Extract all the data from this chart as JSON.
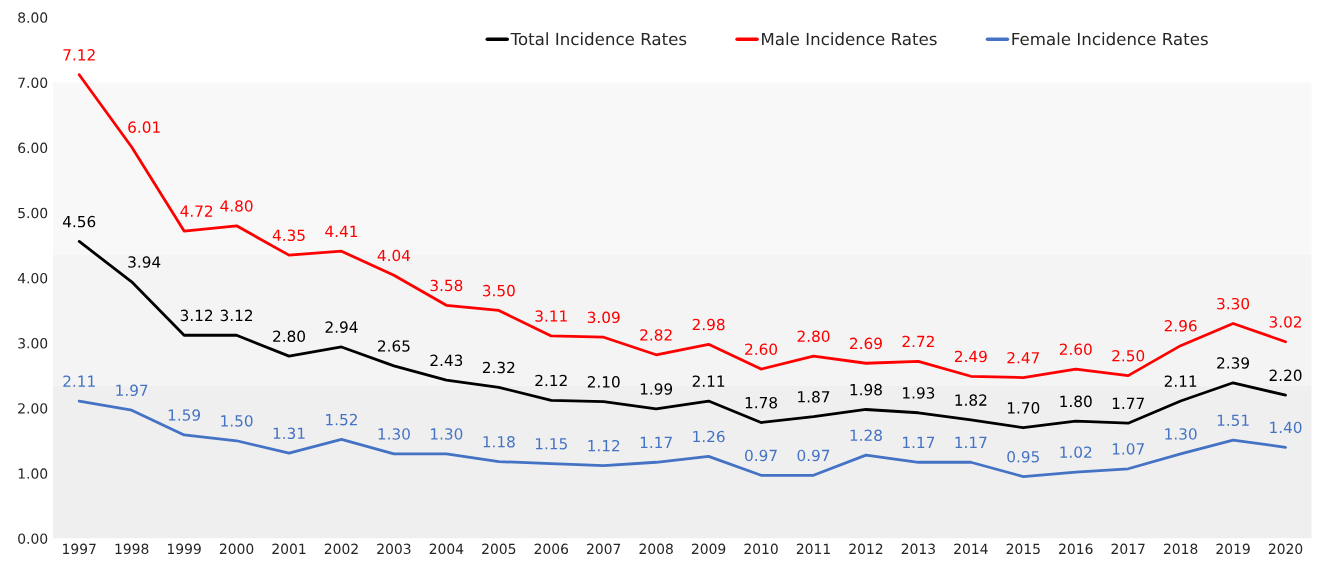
{
  "chart_data": {
    "type": "line",
    "categories": [
      "1997",
      "1998",
      "1999",
      "2000",
      "2001",
      "2002",
      "2003",
      "2004",
      "2005",
      "2006",
      "2007",
      "2008",
      "2009",
      "2010",
      "2011",
      "2012",
      "2013",
      "2014",
      "2015",
      "2016",
      "2017",
      "2018",
      "2019",
      "2020"
    ],
    "series": [
      {
        "name": "Total Incidence Rates",
        "color": "#000000",
        "values": [
          4.56,
          3.94,
          3.12,
          3.12,
          2.8,
          2.94,
          2.65,
          2.43,
          2.32,
          2.12,
          2.1,
          1.99,
          2.11,
          1.78,
          1.87,
          1.98,
          1.93,
          1.82,
          1.7,
          1.8,
          1.77,
          2.11,
          2.39,
          2.2
        ],
        "value_labels": [
          "4.56",
          "3.94",
          "3.12",
          "3.12",
          "2.80",
          "2.94",
          "2.65",
          "2.43",
          "2.32",
          "2.12",
          "2.10",
          "1.99",
          "2.11",
          "1.78",
          "1.87",
          "1.98",
          "1.93",
          "1.82",
          "1.70",
          "1.80",
          "1.77",
          "2.11",
          "2.39",
          "2.20"
        ]
      },
      {
        "name": "Male Incidence Rates",
        "color": "#ff0000",
        "values": [
          7.12,
          6.01,
          4.72,
          4.8,
          4.35,
          4.41,
          4.04,
          3.58,
          3.5,
          3.11,
          3.09,
          2.82,
          2.98,
          2.6,
          2.8,
          2.69,
          2.72,
          2.49,
          2.47,
          2.6,
          2.5,
          2.96,
          3.3,
          3.02
        ],
        "value_labels": [
          "7.12",
          "6.01",
          "4.72",
          "4.80",
          "4.35",
          "4.41",
          "4.04",
          "3.58",
          "3.50",
          "3.11",
          "3.09",
          "2.82",
          "2.98",
          "2.60",
          "2.80",
          "2.69",
          "2.72",
          "2.49",
          "2.47",
          "2.60",
          "2.50",
          "2.96",
          "3.30",
          "3.02"
        ]
      },
      {
        "name": "Female Incidence Rates",
        "color": "#4472c4",
        "values": [
          2.11,
          1.97,
          1.59,
          1.5,
          1.31,
          1.52,
          1.3,
          1.3,
          1.18,
          1.15,
          1.12,
          1.17,
          1.26,
          0.97,
          0.97,
          1.28,
          1.17,
          1.17,
          0.95,
          1.02,
          1.07,
          1.3,
          1.51,
          1.4
        ],
        "value_labels": [
          "2.11",
          "1.97",
          "1.59",
          "1.50",
          "1.31",
          "1.52",
          "1.30",
          "1.30",
          "1.18",
          "1.15",
          "1.12",
          "1.17",
          "1.26",
          "0.97",
          "0.97",
          "1.28",
          "1.17",
          "1.17",
          "0.95",
          "1.02",
          "1.07",
          "1.30",
          "1.51",
          "1.40"
        ]
      }
    ],
    "ylim": [
      0,
      8
    ],
    "yticks": [
      {
        "value": 0,
        "label": "0.00"
      },
      {
        "value": 1,
        "label": "1.00"
      },
      {
        "value": 2,
        "label": "2.00"
      },
      {
        "value": 3,
        "label": "3.00"
      },
      {
        "value": 4,
        "label": "4.00"
      },
      {
        "value": 5,
        "label": "5.00"
      },
      {
        "value": 6,
        "label": "6.00"
      },
      {
        "value": 7,
        "label": "7.00"
      },
      {
        "value": 8,
        "label": "8.00"
      }
    ],
    "bands": [
      {
        "axis": "y",
        "from": 0,
        "to": 2.35,
        "color": "#efefef"
      },
      {
        "axis": "y",
        "from": 2.35,
        "to": 4.35,
        "color": "#f4f4f4"
      },
      {
        "axis": "y",
        "from": 4.35,
        "to": 7.0,
        "color": "#f8f8f8"
      }
    ],
    "legend": "top right",
    "line_style": "solid",
    "marker": "none"
  }
}
